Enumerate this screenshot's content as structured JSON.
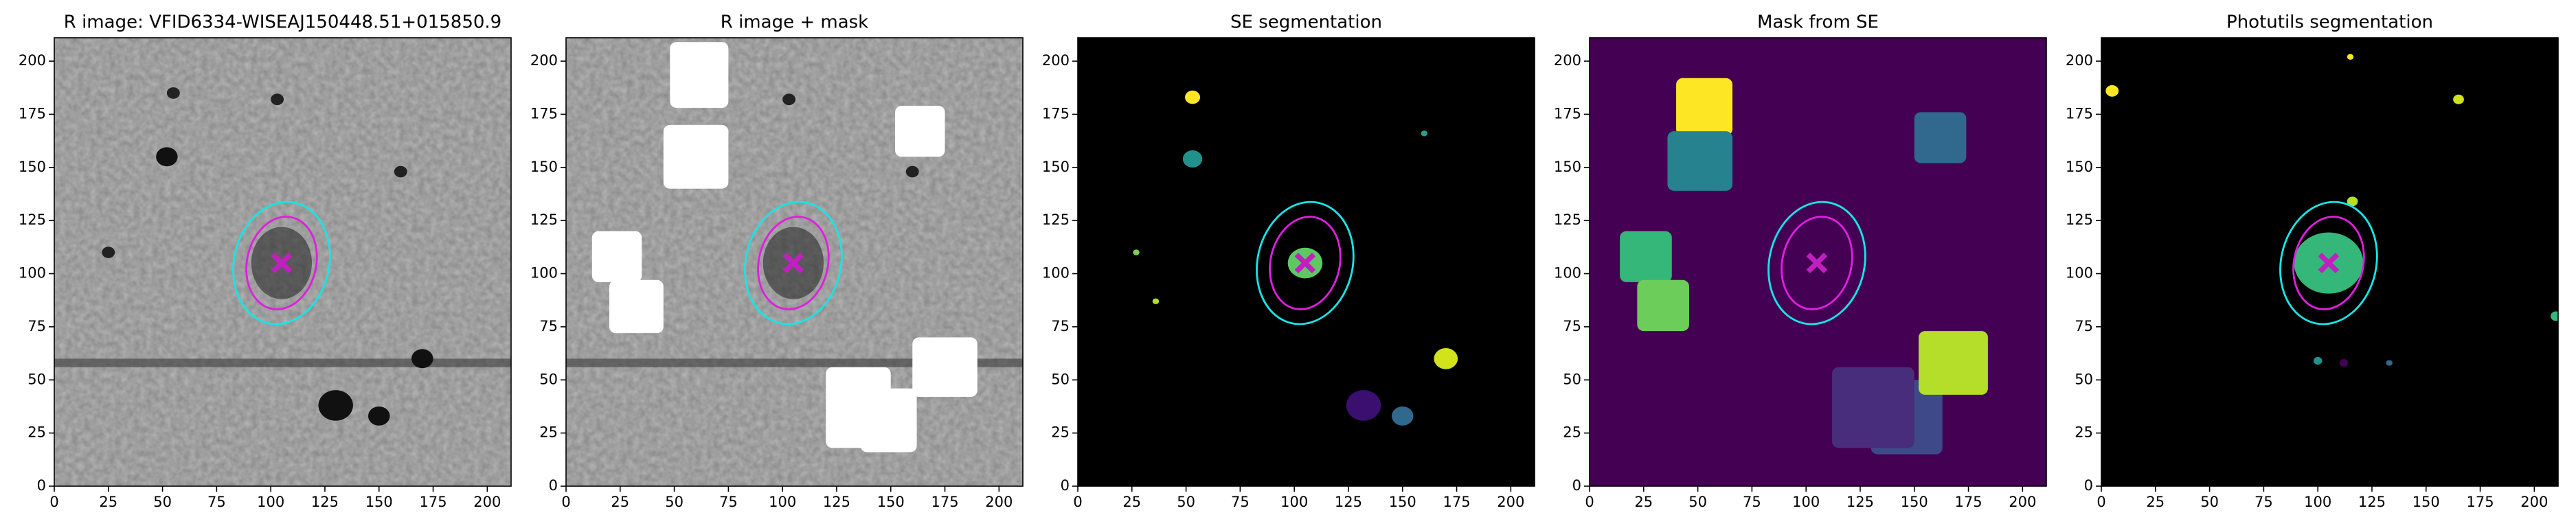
{
  "chart_data": [
    {
      "type": "image",
      "title": "R image: VFID6334-WISEAJ150448.51+015850.9",
      "xlim": [
        0,
        211
      ],
      "ylim": [
        0,
        211
      ],
      "xticks": [
        0,
        25,
        50,
        75,
        100,
        125,
        150,
        175,
        200
      ],
      "yticks": [
        0,
        25,
        50,
        75,
        100,
        125,
        150,
        175,
        200
      ]
    },
    {
      "type": "image",
      "title": "R image + mask",
      "xlim": [
        0,
        211
      ],
      "ylim": [
        0,
        211
      ],
      "xticks": [
        0,
        25,
        50,
        75,
        100,
        125,
        150,
        175,
        200
      ],
      "yticks": [
        0,
        25,
        50,
        75,
        100,
        125,
        150,
        175,
        200
      ]
    },
    {
      "type": "image",
      "title": "SE segmentation",
      "xlim": [
        0,
        211
      ],
      "ylim": [
        0,
        211
      ],
      "xticks": [
        0,
        25,
        50,
        75,
        100,
        125,
        150,
        175,
        200
      ],
      "yticks": [
        0,
        25,
        50,
        75,
        100,
        125,
        150,
        175,
        200
      ]
    },
    {
      "type": "image",
      "title": "Mask from SE",
      "xlim": [
        0,
        211
      ],
      "ylim": [
        0,
        211
      ],
      "xticks": [
        0,
        25,
        50,
        75,
        100,
        125,
        150,
        175,
        200
      ],
      "yticks": [
        0,
        25,
        50,
        75,
        100,
        125,
        150,
        175,
        200
      ]
    },
    {
      "type": "image",
      "title": "Photutils segmentation",
      "xlim": [
        0,
        211
      ],
      "ylim": [
        0,
        211
      ],
      "xticks": [
        0,
        25,
        50,
        75,
        100,
        125,
        150,
        175,
        200
      ],
      "yticks": [
        0,
        25,
        50,
        75,
        100,
        125,
        150,
        175,
        200
      ]
    }
  ]
}
